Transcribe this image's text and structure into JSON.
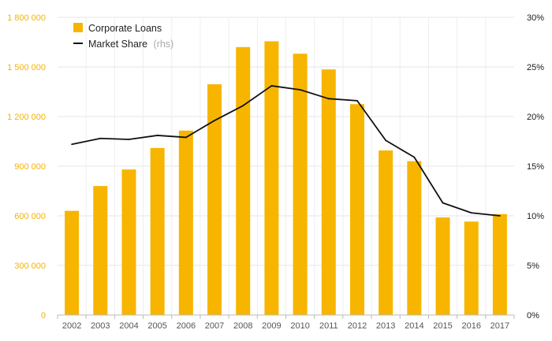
{
  "chart_data": {
    "type": "bar",
    "title": "",
    "xlabel": "",
    "ylabel": "",
    "categories": [
      "2002",
      "2003",
      "2004",
      "2005",
      "2006",
      "2007",
      "2008",
      "2009",
      "2010",
      "2011",
      "2012",
      "2013",
      "2014",
      "2015",
      "2016",
      "2017"
    ],
    "series": [
      {
        "name": "Corporate Loans",
        "type": "bar",
        "axis": "left",
        "color": "#f7b500",
        "values": [
          630000,
          780000,
          880000,
          1010000,
          1115000,
          1395000,
          1620000,
          1655000,
          1580000,
          1485000,
          1275000,
          995000,
          930000,
          590000,
          565000,
          610000
        ]
      },
      {
        "name": "Market Share",
        "name_suffix": "(rhs)",
        "type": "line",
        "axis": "right",
        "color": "#111111",
        "values": [
          17.2,
          17.8,
          17.7,
          18.1,
          17.9,
          19.6,
          21.1,
          23.1,
          22.7,
          21.8,
          21.6,
          17.6,
          15.9,
          11.3,
          10.3,
          10.0
        ]
      }
    ],
    "y_left": {
      "ylim": [
        0,
        1800000
      ],
      "ticks": [
        0,
        300000,
        600000,
        900000,
        1200000,
        1500000,
        1800000
      ],
      "tick_labels": [
        "0",
        "300 000",
        "600 000",
        "900 000",
        "1 200 000",
        "1 500 000",
        "1 800 000"
      ],
      "color": "#f5b400"
    },
    "y_right": {
      "ylim": [
        0,
        30
      ],
      "ticks": [
        0,
        5,
        10,
        15,
        20,
        25,
        30
      ],
      "tick_labels": [
        "0%",
        "5%",
        "10%",
        "15%",
        "20%",
        "25%",
        "30%"
      ],
      "color": "#1a1a1a"
    },
    "grid": true,
    "legend_position": "top-left"
  }
}
